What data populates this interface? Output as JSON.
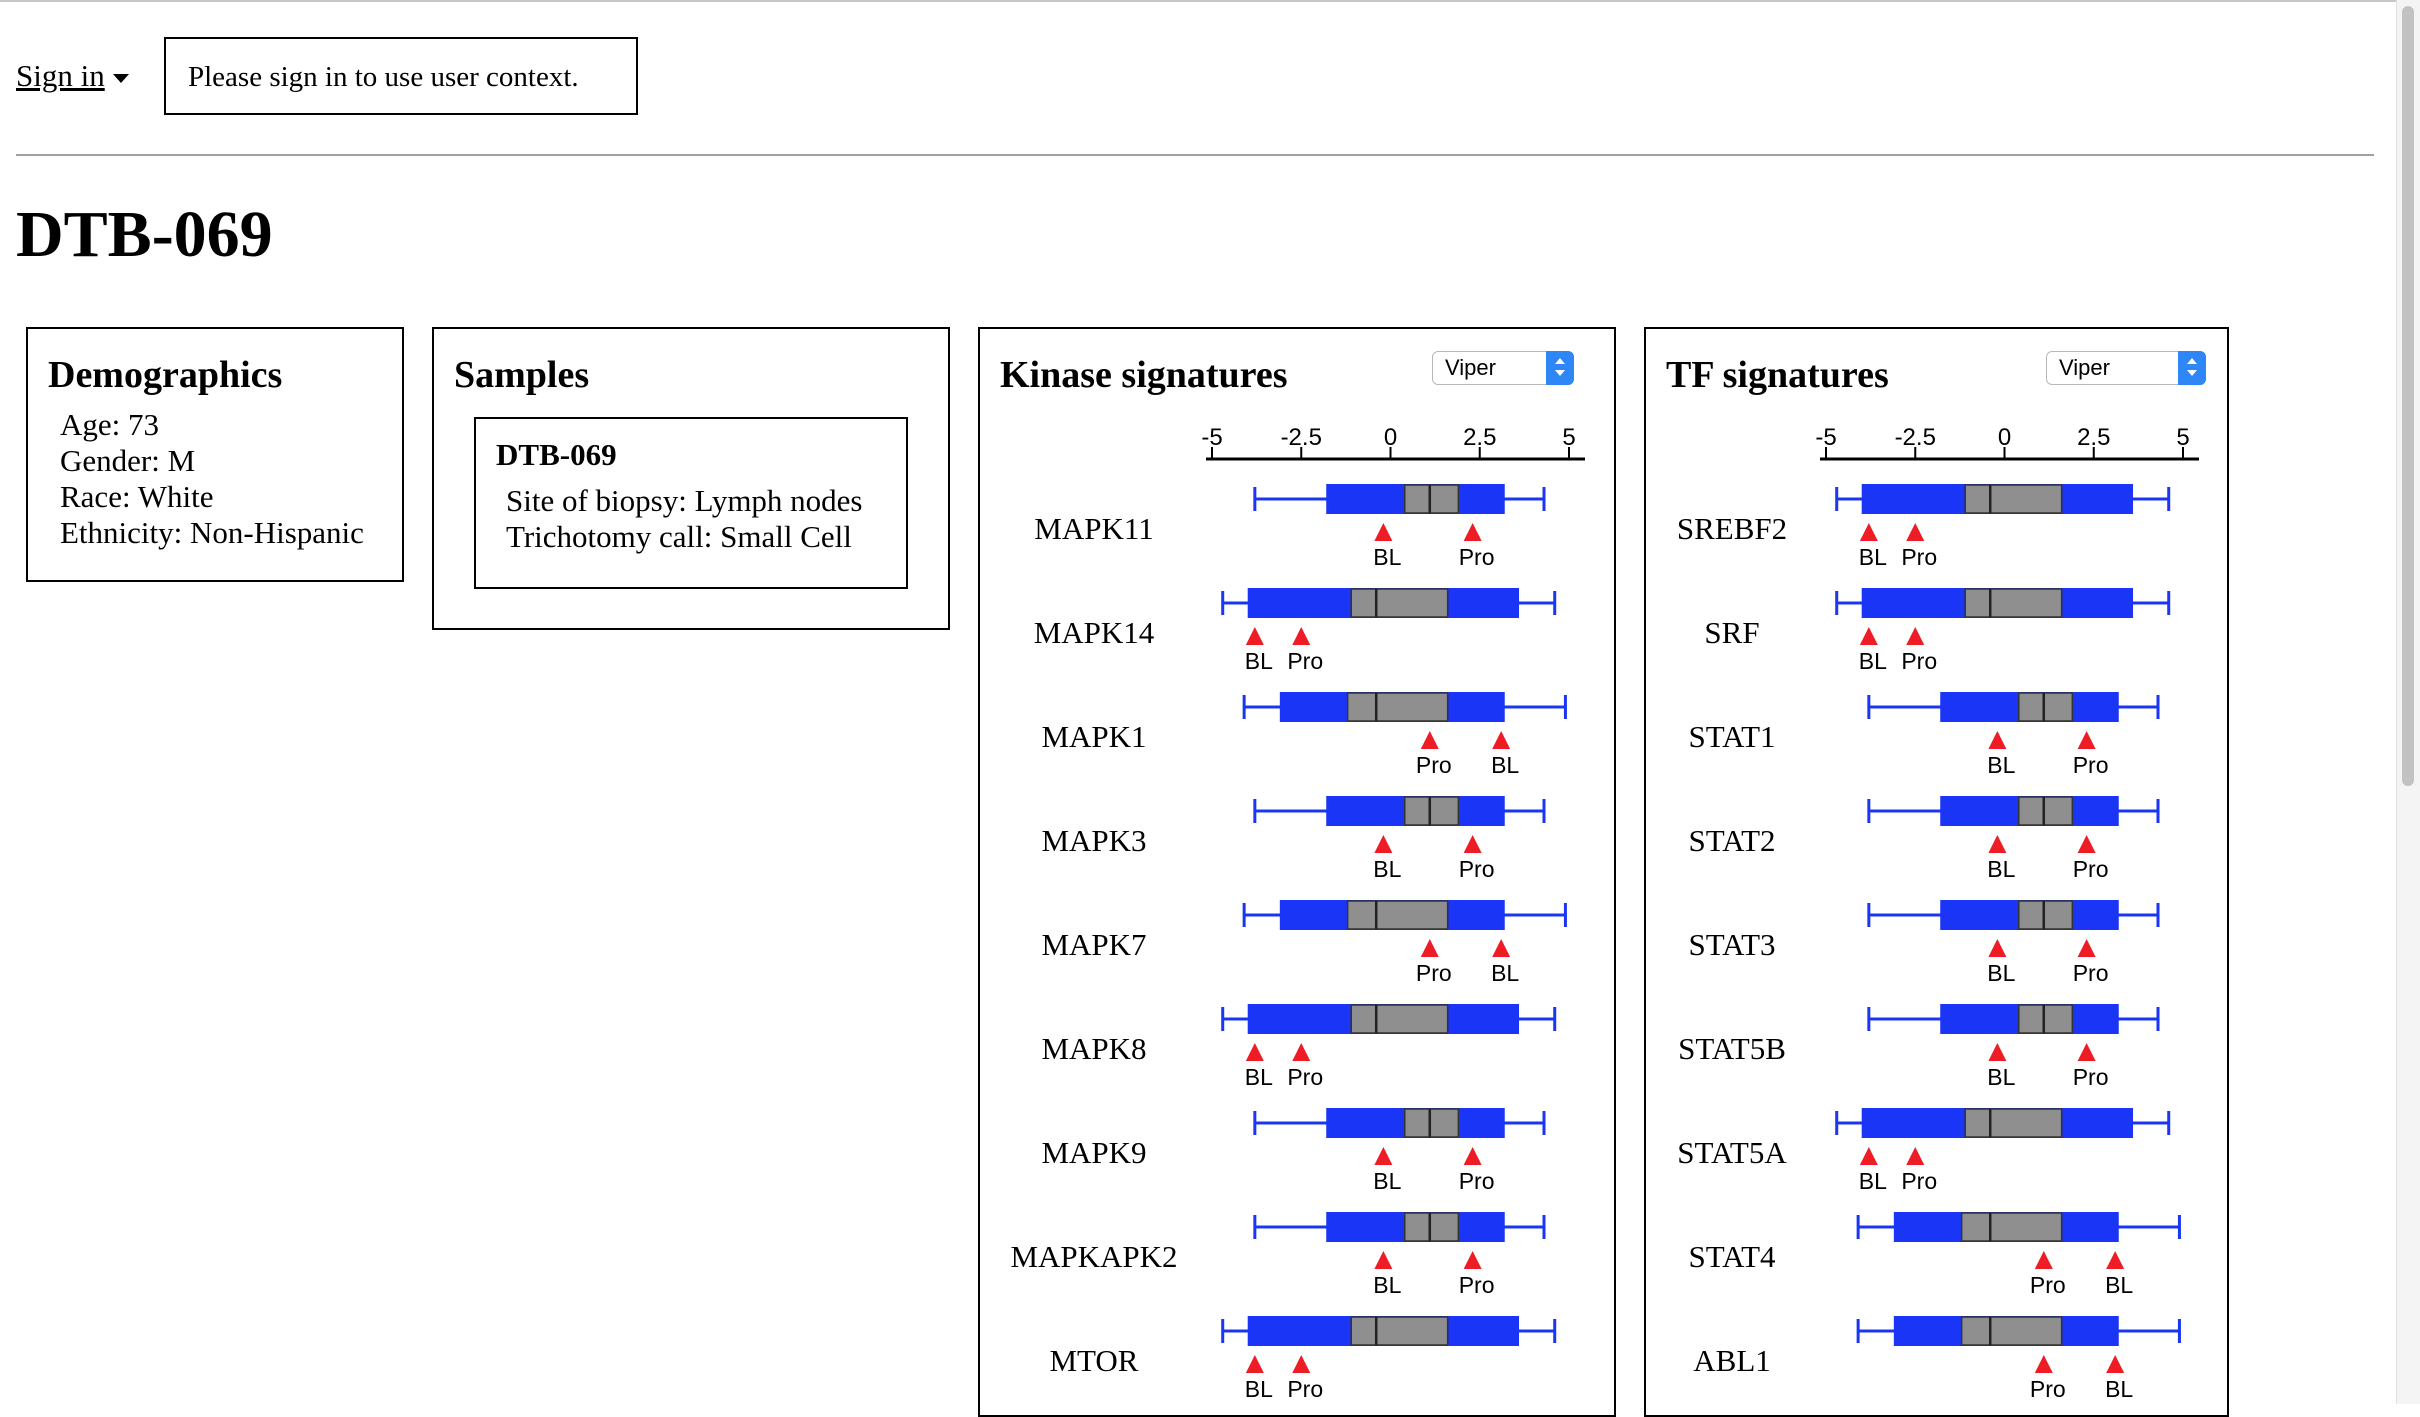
{
  "header": {
    "signin_label": "Sign in",
    "notice": "Please sign in to use user context."
  },
  "page": {
    "title": "DTB-069"
  },
  "demographics": {
    "title": "Demographics",
    "lines": [
      "Age: 73",
      "Gender: M",
      "Race: White",
      "Ethnicity: Non-Hispanic"
    ]
  },
  "samples": {
    "title": "Samples",
    "items": [
      {
        "name": "DTB-069",
        "lines": [
          "Site of biopsy: Lymph nodes",
          "Trichotomy call: Small Cell"
        ]
      }
    ]
  },
  "kinase": {
    "title": "Kinase signatures",
    "method": "Viper",
    "ticks": [
      -5,
      -2.5,
      0,
      2.5,
      5
    ],
    "tick_labels": [
      "-5",
      "-2.5",
      "0",
      "2.5",
      "5"
    ],
    "genes": [
      {
        "name": "MAPK11",
        "whisker": [
          -3.8,
          4.3
        ],
        "box": [
          -1.8,
          3.2
        ],
        "iqr": [
          0.4,
          1.9
        ],
        "median": 1.1,
        "markers": [
          {
            "label": "BL",
            "value": -0.2
          },
          {
            "label": "Pro",
            "value": 2.3
          }
        ]
      },
      {
        "name": "MAPK14",
        "whisker": [
          -4.7,
          4.6
        ],
        "box": [
          -4.0,
          3.6
        ],
        "iqr": [
          -1.1,
          1.6
        ],
        "median": -0.4,
        "markers": [
          {
            "label": "BL",
            "value": -3.8
          },
          {
            "label": "Pro",
            "value": -2.5
          }
        ]
      },
      {
        "name": "MAPK1",
        "whisker": [
          -4.1,
          4.9
        ],
        "box": [
          -3.1,
          3.2
        ],
        "iqr": [
          -1.2,
          1.6
        ],
        "median": -0.4,
        "markers": [
          {
            "label": "Pro",
            "value": 1.1
          },
          {
            "label": "BL",
            "value": 3.1
          }
        ]
      },
      {
        "name": "MAPK3",
        "whisker": [
          -3.8,
          4.3
        ],
        "box": [
          -1.8,
          3.2
        ],
        "iqr": [
          0.4,
          1.9
        ],
        "median": 1.1,
        "markers": [
          {
            "label": "BL",
            "value": -0.2
          },
          {
            "label": "Pro",
            "value": 2.3
          }
        ]
      },
      {
        "name": "MAPK7",
        "whisker": [
          -4.1,
          4.9
        ],
        "box": [
          -3.1,
          3.2
        ],
        "iqr": [
          -1.2,
          1.6
        ],
        "median": -0.4,
        "markers": [
          {
            "label": "Pro",
            "value": 1.1
          },
          {
            "label": "BL",
            "value": 3.1
          }
        ]
      },
      {
        "name": "MAPK8",
        "whisker": [
          -4.7,
          4.6
        ],
        "box": [
          -4.0,
          3.6
        ],
        "iqr": [
          -1.1,
          1.6
        ],
        "median": -0.4,
        "markers": [
          {
            "label": "BL",
            "value": -3.8
          },
          {
            "label": "Pro",
            "value": -2.5
          }
        ]
      },
      {
        "name": "MAPK9",
        "whisker": [
          -3.8,
          4.3
        ],
        "box": [
          -1.8,
          3.2
        ],
        "iqr": [
          0.4,
          1.9
        ],
        "median": 1.1,
        "markers": [
          {
            "label": "BL",
            "value": -0.2
          },
          {
            "label": "Pro",
            "value": 2.3
          }
        ]
      },
      {
        "name": "MAPKAPK2",
        "whisker": [
          -3.8,
          4.3
        ],
        "box": [
          -1.8,
          3.2
        ],
        "iqr": [
          0.4,
          1.9
        ],
        "median": 1.1,
        "markers": [
          {
            "label": "BL",
            "value": -0.2
          },
          {
            "label": "Pro",
            "value": 2.3
          }
        ]
      },
      {
        "name": "MTOR",
        "whisker": [
          -4.7,
          4.6
        ],
        "box": [
          -4.0,
          3.6
        ],
        "iqr": [
          -1.1,
          1.6
        ],
        "median": -0.4,
        "markers": [
          {
            "label": "BL",
            "value": -3.8
          },
          {
            "label": "Pro",
            "value": -2.5
          }
        ]
      }
    ]
  },
  "tf": {
    "title": "TF signatures",
    "method": "Viper",
    "ticks": [
      -5,
      -2.5,
      0,
      2.5,
      5
    ],
    "tick_labels": [
      "-5",
      "-2.5",
      "0",
      "2.5",
      "5"
    ],
    "genes": [
      {
        "name": "SREBF2",
        "whisker": [
          -4.7,
          4.6
        ],
        "box": [
          -4.0,
          3.6
        ],
        "iqr": [
          -1.1,
          1.6
        ],
        "median": -0.4,
        "markers": [
          {
            "label": "BL",
            "value": -3.8
          },
          {
            "label": "Pro",
            "value": -2.5
          }
        ]
      },
      {
        "name": "SRF",
        "whisker": [
          -4.7,
          4.6
        ],
        "box": [
          -4.0,
          3.6
        ],
        "iqr": [
          -1.1,
          1.6
        ],
        "median": -0.4,
        "markers": [
          {
            "label": "BL",
            "value": -3.8
          },
          {
            "label": "Pro",
            "value": -2.5
          }
        ]
      },
      {
        "name": "STAT1",
        "whisker": [
          -3.8,
          4.3
        ],
        "box": [
          -1.8,
          3.2
        ],
        "iqr": [
          0.4,
          1.9
        ],
        "median": 1.1,
        "markers": [
          {
            "label": "BL",
            "value": -0.2
          },
          {
            "label": "Pro",
            "value": 2.3
          }
        ]
      },
      {
        "name": "STAT2",
        "whisker": [
          -3.8,
          4.3
        ],
        "box": [
          -1.8,
          3.2
        ],
        "iqr": [
          0.4,
          1.9
        ],
        "median": 1.1,
        "markers": [
          {
            "label": "BL",
            "value": -0.2
          },
          {
            "label": "Pro",
            "value": 2.3
          }
        ]
      },
      {
        "name": "STAT3",
        "whisker": [
          -3.8,
          4.3
        ],
        "box": [
          -1.8,
          3.2
        ],
        "iqr": [
          0.4,
          1.9
        ],
        "median": 1.1,
        "markers": [
          {
            "label": "BL",
            "value": -0.2
          },
          {
            "label": "Pro",
            "value": 2.3
          }
        ]
      },
      {
        "name": "STAT5B",
        "whisker": [
          -3.8,
          4.3
        ],
        "box": [
          -1.8,
          3.2
        ],
        "iqr": [
          0.4,
          1.9
        ],
        "median": 1.1,
        "markers": [
          {
            "label": "BL",
            "value": -0.2
          },
          {
            "label": "Pro",
            "value": 2.3
          }
        ]
      },
      {
        "name": "STAT5A",
        "whisker": [
          -4.7,
          4.6
        ],
        "box": [
          -4.0,
          3.6
        ],
        "iqr": [
          -1.1,
          1.6
        ],
        "median": -0.4,
        "markers": [
          {
            "label": "BL",
            "value": -3.8
          },
          {
            "label": "Pro",
            "value": -2.5
          }
        ]
      },
      {
        "name": "STAT4",
        "whisker": [
          -4.1,
          4.9
        ],
        "box": [
          -3.1,
          3.2
        ],
        "iqr": [
          -1.2,
          1.6
        ],
        "median": -0.4,
        "markers": [
          {
            "label": "Pro",
            "value": 1.1
          },
          {
            "label": "BL",
            "value": 3.1
          }
        ]
      },
      {
        "name": "ABL1",
        "whisker": [
          -4.1,
          4.9
        ],
        "box": [
          -3.1,
          3.2
        ],
        "iqr": [
          -1.2,
          1.6
        ],
        "median": -0.4,
        "markers": [
          {
            "label": "Pro",
            "value": 1.1
          },
          {
            "label": "BL",
            "value": 3.1
          }
        ]
      }
    ]
  },
  "colors": {
    "box": "#1a35f5",
    "iqr": "#8f8f8f",
    "marker": "#ee1c25"
  }
}
